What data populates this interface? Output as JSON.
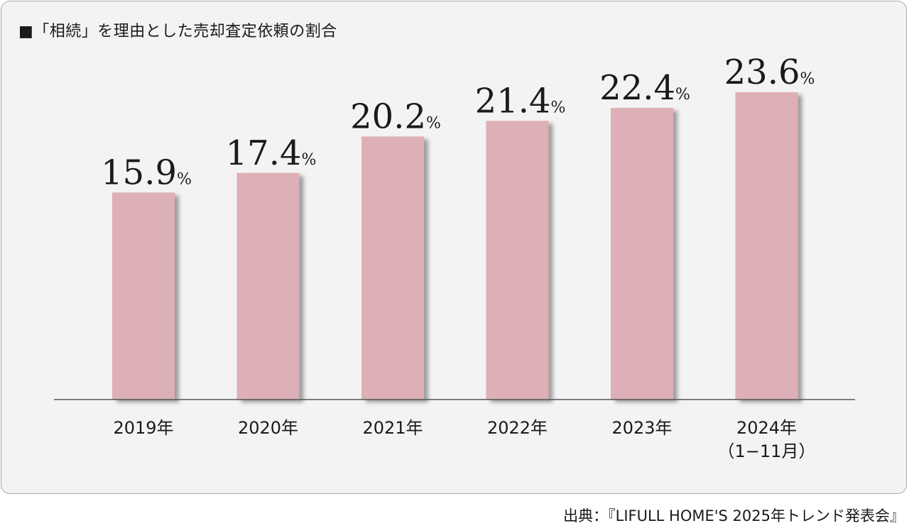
{
  "title": "■「相続」を理由とした売却査定依頼の割合",
  "source": "出典：『LIFULL HOME'S 2025年トレンド発表会』",
  "colors": {
    "bar": "#ddafb6",
    "bar_shadow": "#b9b9b9",
    "panel_background": "#f3f3f3",
    "panel_border": "#a9a9a9",
    "axis": "#555555",
    "text": "#1a1a1a"
  },
  "chart_data": {
    "type": "bar",
    "title": "■「相続」を理由とした売却査定依頼の割合",
    "categories": [
      [
        "2019年"
      ],
      [
        "2020年"
      ],
      [
        "2021年"
      ],
      [
        "2022年"
      ],
      [
        "2023年"
      ],
      [
        "2024年",
        "（1−11月）"
      ]
    ],
    "values": [
      15.9,
      17.4,
      20.2,
      21.4,
      22.4,
      23.6
    ],
    "value_unit": "%",
    "value_labels": [
      "15.9",
      "17.4",
      "20.2",
      "21.4",
      "22.4",
      "23.6"
    ],
    "xlabel": "",
    "ylabel": "",
    "ylim": [
      0,
      23.6
    ],
    "grid": false,
    "legend": "none"
  }
}
